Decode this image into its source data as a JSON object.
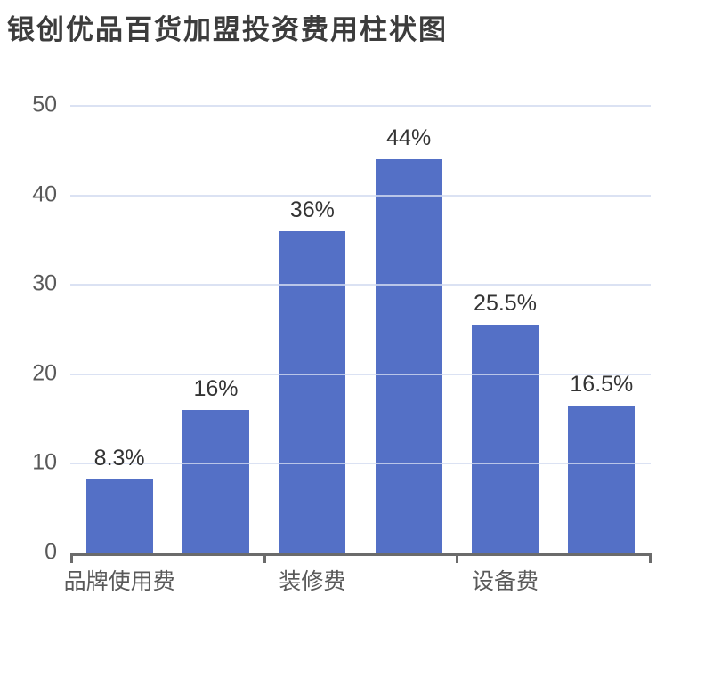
{
  "page": {
    "title": "银创优品百货加盟投资费用柱状图"
  },
  "chart_data": {
    "type": "bar",
    "title": "银创优品百货加盟投资费用柱状图",
    "categories": [
      "品牌使用费",
      "装修费",
      "设备费"
    ],
    "bars_per_category": 2,
    "values": [
      8.3,
      16,
      36,
      44,
      25.5,
      16.5
    ],
    "data_labels": [
      "8.3%",
      "16%",
      "36%",
      "44%",
      "25.5%",
      "16.5%"
    ],
    "y_ticks": [
      0,
      10,
      20,
      30,
      40,
      50
    ],
    "ylim": [
      0,
      50
    ],
    "grid": true,
    "legend_position": "none",
    "xlabel": "",
    "ylabel": ""
  },
  "colors": {
    "bar": "#5470C6",
    "gridline": "#DCE2F1",
    "axis": "#6B6B6B",
    "axis_label": "#595959",
    "data_label": "#333333",
    "title": "#3C3C3C",
    "background": "#FFFFFF"
  }
}
